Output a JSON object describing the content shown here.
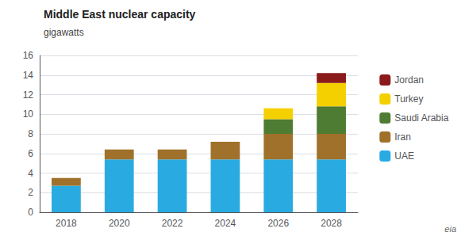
{
  "chart_data": {
    "type": "bar",
    "title": "Middle East nuclear capacity",
    "subtitle": "gigawatts",
    "annotation": "eia",
    "categories": [
      "2018",
      "2020",
      "2022",
      "2024",
      "2026",
      "2028"
    ],
    "series": [
      {
        "name": "UAE",
        "color": "#29ABE2",
        "values": [
          2.7,
          5.4,
          5.4,
          5.4,
          5.4,
          5.4
        ]
      },
      {
        "name": "Iran",
        "color": "#A0712A",
        "values": [
          0.8,
          1.0,
          1.0,
          1.8,
          2.6,
          2.6
        ]
      },
      {
        "name": "Saudi Arabia",
        "color": "#4E7C32",
        "values": [
          0.0,
          0.0,
          0.0,
          0.0,
          1.5,
          2.8
        ]
      },
      {
        "name": "Turkey",
        "color": "#F5D000",
        "values": [
          0.0,
          0.0,
          0.0,
          0.0,
          1.1,
          2.4
        ]
      },
      {
        "name": "Jordan",
        "color": "#8B1A1A",
        "values": [
          0.0,
          0.0,
          0.0,
          0.0,
          0.0,
          1.0
        ]
      }
    ],
    "stacked": true,
    "ylim": [
      0,
      16
    ],
    "yticks": [
      0,
      2,
      4,
      6,
      8,
      10,
      12,
      14,
      16
    ],
    "grid": true,
    "legend": "right"
  }
}
